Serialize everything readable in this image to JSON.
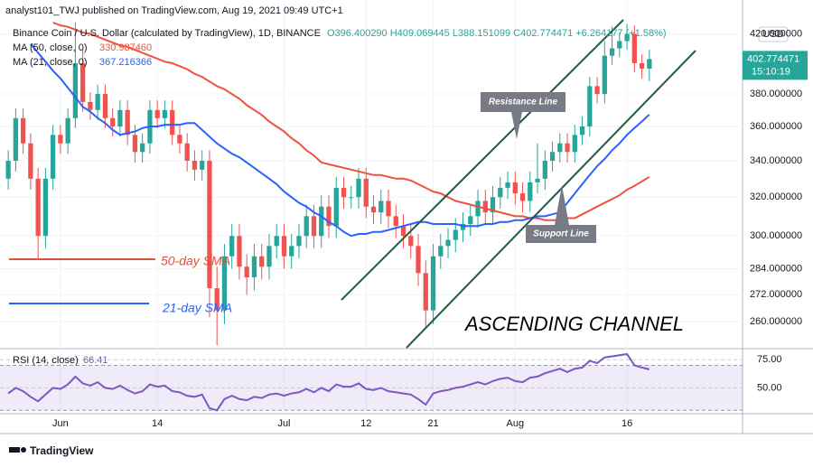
{
  "header": {
    "publisher": "analyst101_TWJ published on TradingView.com, Aug 19, 2021 09:49 UTC+1"
  },
  "footer": {
    "brand": "TradingView"
  },
  "chart_data": [
    {
      "type": "candlestick",
      "title": "Binance Coin / U.S. Dollar (calculated by TradingView), 1D, BINANCE",
      "ohlc_text": "O396.400290 H409.069445 L388.151099 C402.774471 +6.264177 (+1.58%)",
      "currency": "USD",
      "countdown": "15:10:19",
      "categories": [
        null,
        null,
        null,
        null,
        null,
        null,
        null,
        "Jun",
        null,
        null,
        null,
        null,
        null,
        null,
        null,
        null,
        null,
        null,
        null,
        null,
        "14",
        null,
        null,
        null,
        null,
        null,
        null,
        null,
        null,
        null,
        null,
        null,
        null,
        null,
        null,
        null,
        null,
        "Jul",
        null,
        null,
        null,
        null,
        null,
        null,
        null,
        null,
        null,
        null,
        "12",
        null,
        null,
        null,
        null,
        null,
        null,
        null,
        null,
        "21",
        null,
        null,
        null,
        null,
        null,
        null,
        null,
        null,
        null,
        null,
        "Aug",
        null,
        null,
        null,
        null,
        null,
        null,
        null,
        null,
        null,
        null,
        null,
        null,
        null,
        null,
        "16",
        null,
        null,
        null
      ],
      "open": [
        330,
        340,
        365,
        350,
        330,
        300,
        330,
        355,
        350,
        365,
        400,
        375,
        370,
        380,
        365,
        360,
        370,
        355,
        345,
        350,
        370,
        365,
        370,
        355,
        350,
        340,
        335,
        340,
        275,
        265,
        290,
        300,
        285,
        280,
        290,
        285,
        295,
        300,
        290,
        295,
        300,
        310,
        300,
        315,
        305,
        325,
        320,
        320,
        330,
        315,
        312,
        318,
        310,
        305,
        300,
        295,
        282,
        265,
        290,
        295,
        298,
        303,
        306,
        310,
        318,
        312,
        320,
        325,
        328,
        322,
        318,
        328,
        330,
        340,
        345,
        350,
        345,
        355,
        360,
        385,
        380,
        405,
        410,
        415,
        420,
        400,
        396.40029
      ],
      "high": [
        346,
        371,
        371,
        356,
        336,
        336,
        361,
        361,
        371,
        428,
        410,
        381,
        386,
        386,
        371,
        376,
        376,
        361,
        356,
        376,
        376,
        376,
        376,
        361,
        356,
        346,
        346,
        346,
        285,
        296,
        306,
        306,
        291,
        296,
        296,
        301,
        306,
        306,
        301,
        306,
        316,
        316,
        321,
        321,
        331,
        331,
        326,
        336,
        336,
        321,
        324,
        324,
        316,
        311,
        306,
        301,
        288,
        296,
        301,
        304,
        309,
        312,
        316,
        324,
        324,
        326,
        331,
        334,
        334,
        328,
        334,
        350,
        346,
        351,
        356,
        356,
        361,
        366,
        391,
        391,
        415,
        425,
        421,
        427,
        426,
        406,
        409.069445
      ],
      "low": [
        324,
        334,
        344,
        324,
        288,
        294,
        324,
        344,
        344,
        359,
        369,
        364,
        364,
        359,
        354,
        354,
        349,
        339,
        339,
        344,
        359,
        359,
        349,
        344,
        334,
        329,
        329,
        262,
        250,
        259,
        284,
        279,
        272,
        274,
        279,
        279,
        289,
        284,
        284,
        289,
        294,
        294,
        294,
        299,
        299,
        314,
        314,
        314,
        309,
        306,
        306,
        304,
        299,
        294,
        289,
        276,
        258,
        259,
        284,
        289,
        292,
        297,
        300,
        304,
        306,
        306,
        314,
        319,
        316,
        312,
        312,
        322,
        324,
        334,
        339,
        339,
        339,
        349,
        354,
        374,
        374,
        399,
        404,
        409,
        394,
        390,
        388.151099
      ],
      "close": [
        340,
        365,
        350,
        330,
        300,
        330,
        355,
        350,
        365,
        400,
        375,
        370,
        380,
        365,
        360,
        370,
        355,
        345,
        350,
        370,
        365,
        370,
        355,
        350,
        340,
        335,
        340,
        275,
        265,
        290,
        300,
        285,
        280,
        290,
        285,
        295,
        300,
        290,
        295,
        300,
        310,
        300,
        315,
        305,
        325,
        320,
        320,
        330,
        315,
        312,
        318,
        310,
        305,
        300,
        295,
        282,
        265,
        290,
        295,
        298,
        303,
        306,
        310,
        318,
        312,
        320,
        325,
        328,
        322,
        318,
        328,
        330,
        340,
        345,
        350,
        345,
        355,
        360,
        385,
        380,
        405,
        410,
        415,
        420,
        400,
        396.40029,
        402.774471
      ],
      "up_color": "#26a69a",
      "down_color": "#ef5350",
      "log_scale": true,
      "grid": true,
      "ylim": [
        249,
        428
      ],
      "yticks": [
        {
          "value": 420,
          "label": "420.000000"
        },
        {
          "value": 380,
          "label": "380.000000"
        },
        {
          "value": 360,
          "label": "360.000000"
        },
        {
          "value": 340,
          "label": "340.000000"
        },
        {
          "value": 320,
          "label": "320.000000"
        },
        {
          "value": 300,
          "label": "300.000000"
        },
        {
          "value": 284,
          "label": "284.000000"
        },
        {
          "value": 272,
          "label": "272.000000"
        },
        {
          "value": 260,
          "label": "260.000000"
        }
      ],
      "series": [
        {
          "name": "MA (50, close, 0)",
          "color": "#f0503c",
          "last_label": "330.987460",
          "values": [
            null,
            null,
            null,
            null,
            null,
            null,
            428,
            426,
            425,
            423,
            421,
            420,
            418,
            416,
            414,
            412,
            411,
            409,
            407,
            405,
            403,
            401,
            400,
            398,
            396,
            393,
            391,
            388,
            385,
            383,
            380,
            377,
            373,
            370,
            367,
            363,
            360,
            357,
            353,
            350,
            346,
            343,
            339,
            338,
            337,
            336,
            335,
            334,
            333,
            332,
            332,
            331,
            330,
            330,
            329,
            327,
            325,
            323,
            322,
            320,
            318,
            317,
            316,
            315,
            314,
            313,
            312,
            311,
            310,
            310,
            309,
            309,
            308,
            308,
            308,
            309,
            309,
            311,
            313,
            315,
            317,
            319,
            321,
            324,
            326,
            328.5,
            330.98746
          ]
        },
        {
          "name": "MA (21, close, 0)",
          "color": "#2962ff",
          "last_label": "367.216366",
          "values": [
            null,
            null,
            null,
            413,
            407,
            401,
            395,
            390,
            384,
            378,
            372,
            369,
            365,
            362,
            358,
            355,
            356,
            357,
            359,
            360,
            360,
            361,
            361,
            361,
            362,
            362,
            358,
            354,
            350,
            347,
            344,
            342,
            339,
            336,
            333,
            330,
            327,
            323,
            320,
            317,
            315,
            312,
            310,
            307,
            305,
            302,
            300,
            301,
            301,
            302,
            302,
            303,
            304,
            305,
            306,
            307,
            307,
            306,
            306,
            306,
            306,
            305,
            305,
            305,
            306,
            306,
            307,
            307,
            308,
            308,
            309,
            310,
            310,
            311,
            312,
            317,
            322,
            327,
            332,
            337,
            341,
            346,
            350,
            355,
            359,
            363,
            367.216366
          ]
        }
      ],
      "annotations": [
        "Resistance Line",
        "Support Line",
        "ASCENDING CHANNEL",
        "50-day SMA",
        "21-day SMA"
      ]
    },
    {
      "type": "line",
      "ylim": [
        27,
        84
      ],
      "yticks": [
        {
          "value": 75,
          "label": "75.00"
        },
        {
          "value": 50,
          "label": "50.00"
        }
      ],
      "band": [
        30,
        70
      ],
      "series": [
        {
          "name": "RSI (14, close)",
          "color": "#7e57c2",
          "values": [
            45,
            50,
            47,
            42,
            38,
            44,
            50,
            49,
            53,
            60,
            54,
            52,
            55,
            50,
            49,
            52,
            48,
            45,
            47,
            53,
            51,
            52,
            47,
            46,
            43,
            42,
            44,
            32,
            30,
            40,
            43,
            40,
            39,
            42,
            41,
            44,
            45,
            43,
            45,
            46,
            49,
            46,
            50,
            47,
            53,
            51,
            51,
            54,
            49,
            48,
            50,
            47,
            46,
            45,
            44,
            40,
            35,
            45,
            47,
            48,
            50,
            51,
            53,
            55,
            53,
            56,
            58,
            59,
            56,
            55,
            59,
            60,
            63,
            65,
            67,
            64,
            67,
            68,
            74,
            72,
            77,
            78,
            79,
            80,
            70,
            68,
            66.41
          ]
        }
      ]
    }
  ]
}
